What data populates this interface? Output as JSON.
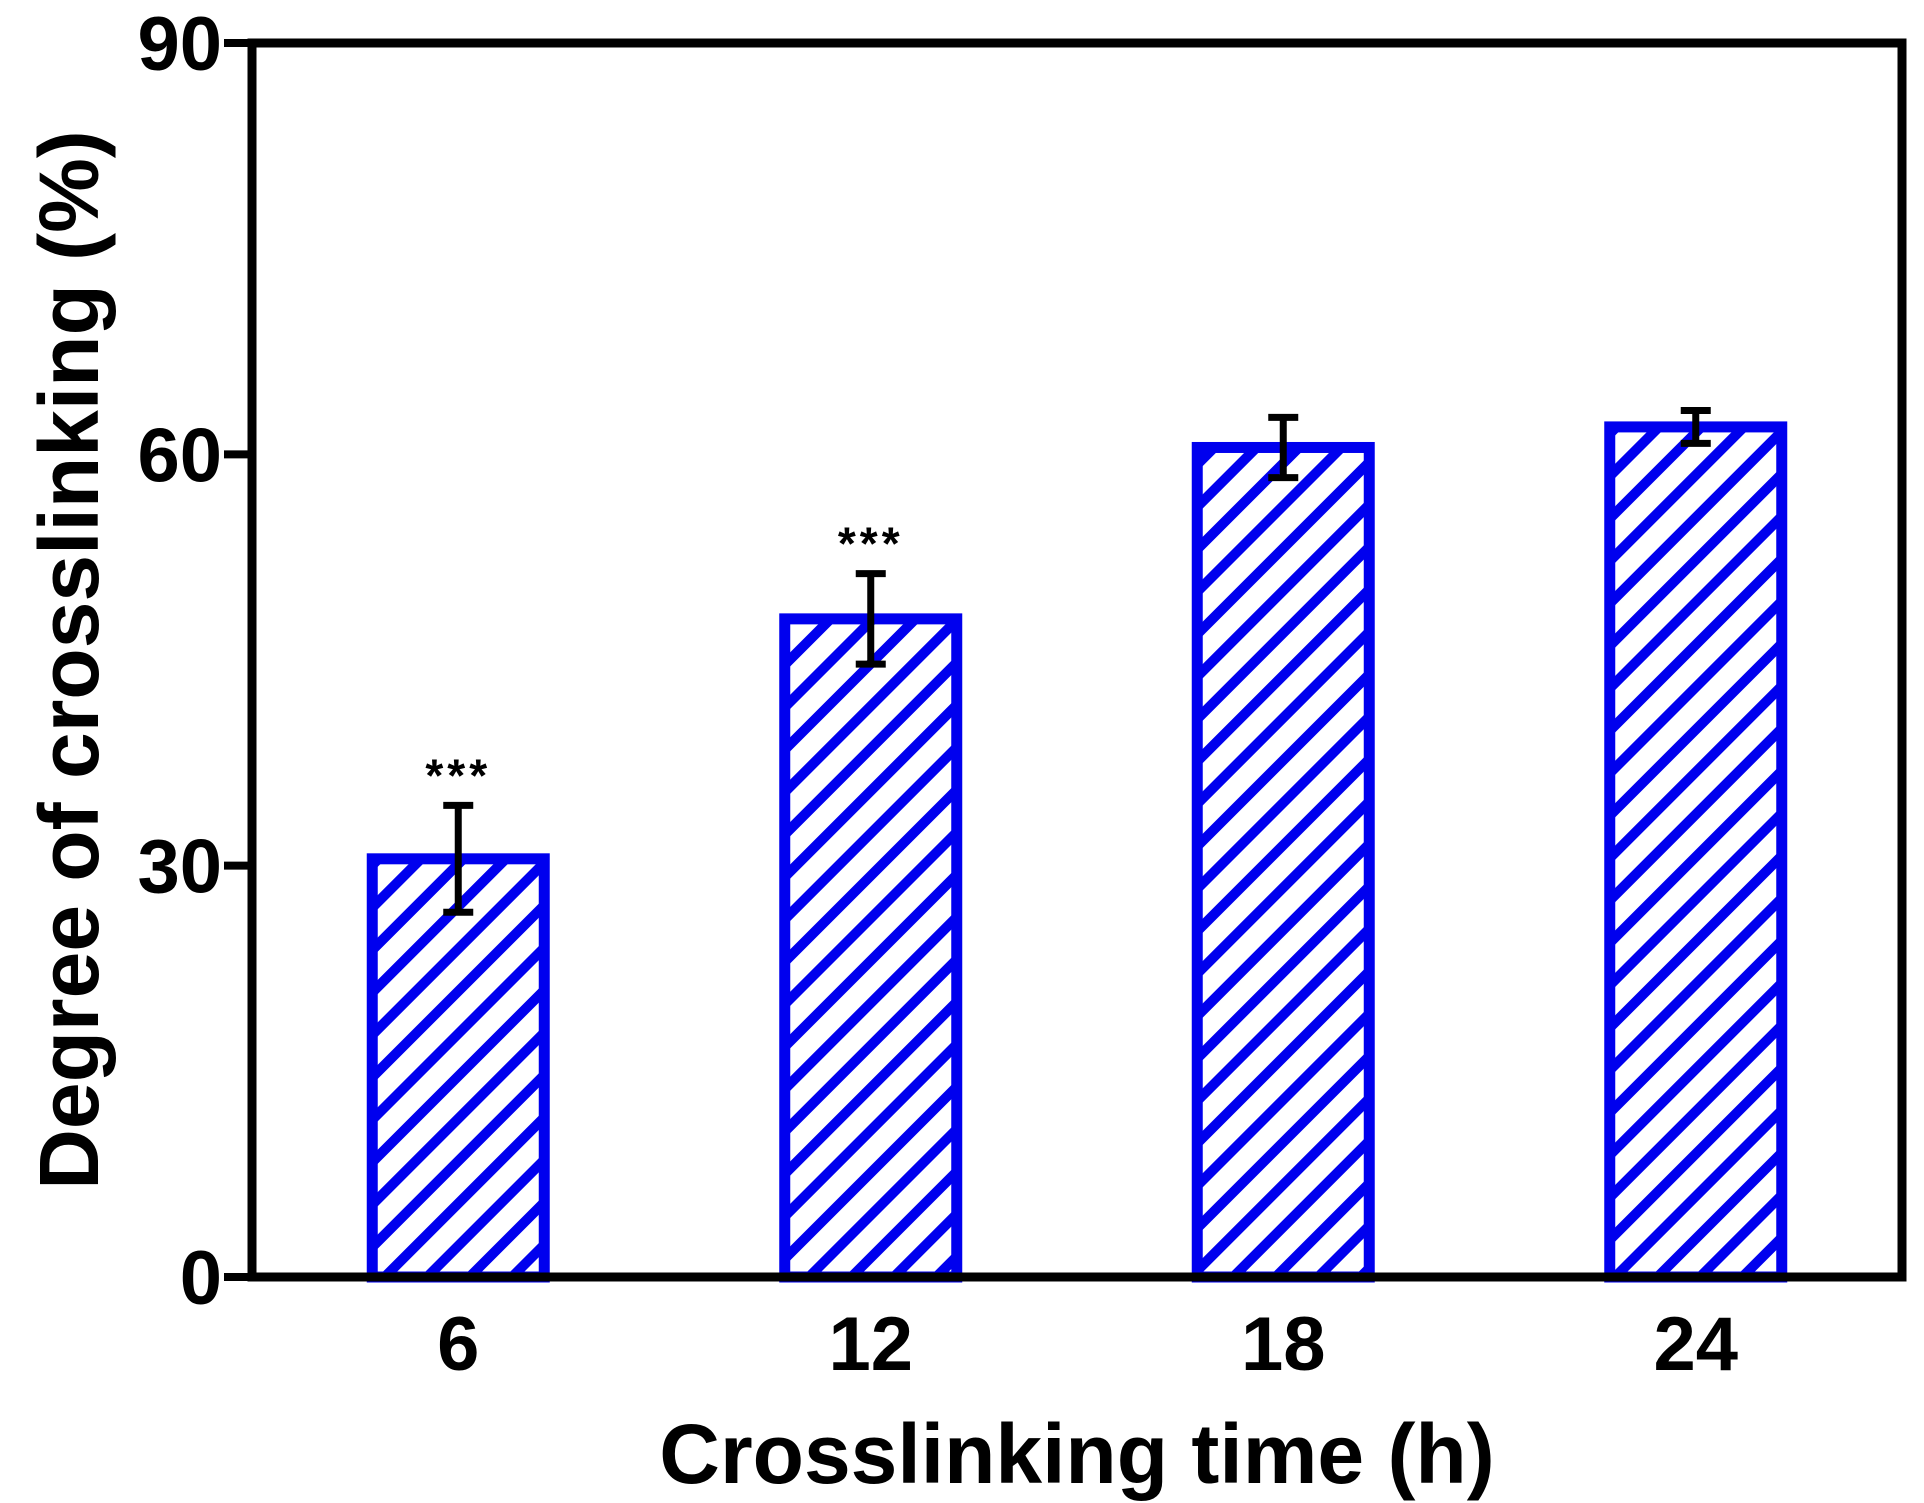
{
  "chart_data": {
    "type": "bar",
    "title": "",
    "xlabel": "Crosslinking time (h)",
    "ylabel": "Degree of crosslinking (%)",
    "categories": [
      "6",
      "12",
      "18",
      "24"
    ],
    "values": [
      30.5,
      48.0,
      60.5,
      62.0
    ],
    "errors": [
      3.9,
      3.3,
      2.2,
      1.2
    ],
    "significance": [
      "***",
      "***",
      "",
      ""
    ],
    "ylim": [
      0,
      90
    ],
    "yticks": [
      0,
      30,
      60,
      90
    ],
    "grid": false,
    "bar_color": "#0000ee",
    "bar_fill": "diagonal-hatch"
  }
}
